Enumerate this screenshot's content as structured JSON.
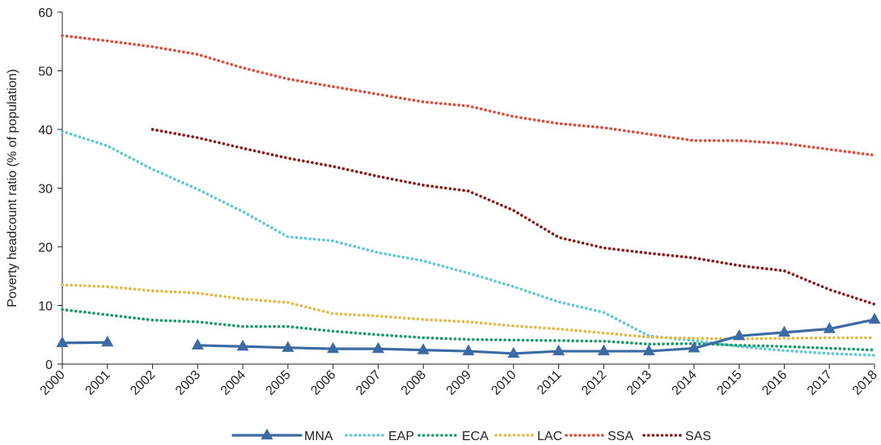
{
  "chart_data": {
    "type": "line",
    "title": "",
    "xlabel": "",
    "ylabel": "Poverty headcount ratio (% of population)",
    "ylim": [
      0,
      60
    ],
    "yticks": [
      0,
      10,
      20,
      30,
      40,
      50,
      60
    ],
    "x": [
      "2000",
      "2001",
      "2002",
      "2003",
      "2004",
      "2005",
      "2006",
      "2007",
      "2008",
      "2009",
      "2010",
      "2011",
      "2012",
      "2013",
      "2014",
      "2015",
      "2016",
      "2017",
      "2018"
    ],
    "grid": false,
    "legend_position": "bottom",
    "series": [
      {
        "name": "MNA",
        "style": "solid-triangle",
        "color": "#3b6aa5",
        "values": [
          3.6,
          3.7,
          null,
          3.2,
          3.0,
          2.8,
          2.6,
          2.6,
          2.4,
          2.2,
          1.8,
          2.2,
          2.2,
          2.2,
          2.7,
          4.8,
          5.4,
          6.0,
          7.6
        ]
      },
      {
        "name": "EAP",
        "style": "dotted",
        "color": "#5bc8d3",
        "values": [
          39.7,
          37.2,
          33.2,
          29.8,
          26.0,
          21.7,
          21.0,
          19.0,
          17.6,
          15.5,
          13.2,
          10.6,
          8.8,
          4.8,
          4.0,
          3.0,
          2.3,
          1.8,
          1.5
        ]
      },
      {
        "name": "ECA",
        "style": "dotted",
        "color": "#1a9a6b",
        "values": [
          9.3,
          8.4,
          7.5,
          7.2,
          6.4,
          6.4,
          5.6,
          5.0,
          4.5,
          4.2,
          4.1,
          4.0,
          3.9,
          3.4,
          3.5,
          3.2,
          3.0,
          2.7,
          2.4
        ]
      },
      {
        "name": "LAC",
        "style": "dotted",
        "color": "#e2b945",
        "values": [
          13.5,
          13.2,
          12.5,
          12.1,
          11.1,
          10.5,
          8.6,
          8.2,
          7.6,
          7.2,
          6.5,
          6.0,
          5.3,
          4.6,
          4.4,
          4.3,
          4.4,
          4.5,
          4.5
        ]
      },
      {
        "name": "SSA",
        "style": "dotted",
        "color": "#dd4b39",
        "values": [
          56.0,
          55.1,
          54.1,
          52.8,
          50.5,
          48.6,
          47.3,
          46.0,
          44.7,
          44.0,
          42.2,
          41.0,
          40.3,
          39.2,
          38.1,
          38.1,
          37.6,
          36.6,
          35.6
        ]
      },
      {
        "name": "SAS",
        "style": "dotted",
        "color": "#8a1a1a",
        "values": [
          null,
          null,
          40.0,
          38.6,
          36.8,
          35.1,
          33.7,
          32.0,
          30.5,
          29.5,
          26.2,
          21.6,
          19.8,
          18.9,
          18.1,
          16.8,
          15.9,
          12.7,
          10.2
        ]
      }
    ]
  }
}
